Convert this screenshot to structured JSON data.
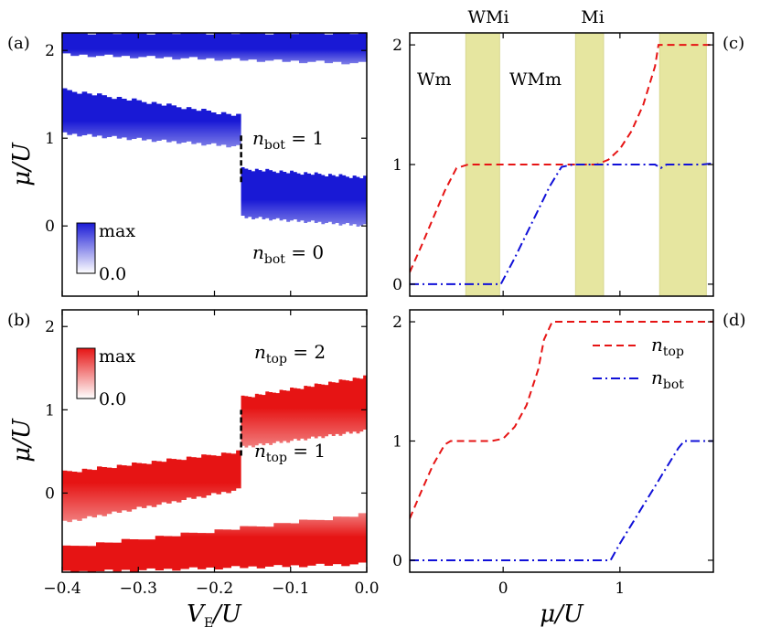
{
  "figure": {
    "panel_labels": [
      "(a)",
      "(b)",
      "(c)",
      "(d)"
    ],
    "xlabel_left_main": "V",
    "xlabel_left_sub": "E",
    "xlabel_left_tail": "/U",
    "xlabel_right": "μ/U",
    "ylabel": "μ/U"
  },
  "panel_a": {
    "colorbar_max": "max",
    "colorbar_min": "0.0",
    "label_nbot1_main": "n",
    "label_nbot1_sub": "bot",
    "label_nbot1_val": " = 1",
    "label_nbot0_main": "n",
    "label_nbot0_sub": "bot",
    "label_nbot0_val": " = 0"
  },
  "panel_b": {
    "colorbar_max": "max",
    "colorbar_min": "0.0",
    "label_ntop2_main": "n",
    "label_ntop2_sub": "top",
    "label_ntop2_val": " = 2",
    "label_ntop1_main": "n",
    "label_ntop1_sub": "top",
    "label_ntop1_val": " = 1"
  },
  "panel_c": {
    "phase_top_labels": [
      "WMi",
      "Mi"
    ],
    "phase_inner_labels": [
      "Wm",
      "WMm"
    ]
  },
  "panel_d": {
    "legend_ntop_main": "n",
    "legend_ntop_sub": "top",
    "legend_nbot_main": "n",
    "legend_nbot_sub": "bot"
  },
  "colors": {
    "blue": "#1a1ad6",
    "red": "#e61414",
    "band": "#e6e6a0",
    "ntop_line": "#e61414",
    "nbot_line": "#1010d8"
  },
  "chart_data": [
    {
      "type": "heatmap",
      "panel": "a",
      "title": "",
      "xlabel": "V_E/U",
      "ylabel": "μ/U",
      "xlim": [
        -0.4,
        0.0
      ],
      "ylim": [
        -0.8,
        2.2
      ],
      "xticks": [
        -0.4,
        -0.3,
        -0.2,
        -0.1,
        0.0
      ],
      "yticks": [
        0,
        1,
        2
      ],
      "quantity": "n_bot density",
      "colormap": "white to blue",
      "bands": [
        {
          "name": "upper",
          "x": [
            -0.4,
            0.0
          ],
          "y_bottom_start": 1.95,
          "y_bottom_end": 1.85,
          "y_top": 2.2
        },
        {
          "name": "lower-left",
          "x": [
            -0.4,
            -0.165
          ],
          "y_bottom_start": 1.05,
          "y_bottom_end": 0.9,
          "y_top_start": 1.55,
          "y_top_end": 1.25
        },
        {
          "name": "lower-right",
          "x": [
            -0.165,
            0.0
          ],
          "y_bottom_start": 0.1,
          "y_bottom_end": 0.0,
          "y_top_start": 0.65,
          "y_top_end": 0.55
        }
      ],
      "transition_line": {
        "x": -0.165,
        "y": [
          0.5,
          1.05
        ],
        "style": "dashed"
      }
    },
    {
      "type": "heatmap",
      "panel": "b",
      "title": "",
      "xlabel": "V_E/U",
      "ylabel": "μ/U",
      "xlim": [
        -0.4,
        0.0
      ],
      "ylim": [
        -0.95,
        2.2
      ],
      "xticks": [
        -0.4,
        -0.3,
        -0.2,
        -0.1,
        0.0
      ],
      "xtick_labels": [
        "−0.4",
        "−0.3",
        "−0.2",
        "−0.1",
        "0.0"
      ],
      "yticks": [
        0,
        1,
        2
      ],
      "quantity": "n_top density",
      "colormap": "white to red",
      "bands": [
        {
          "name": "upper-right",
          "x": [
            -0.165,
            0.0
          ],
          "y_bottom_start": 0.55,
          "y_bottom_end": 0.75,
          "y_top_start": 1.15,
          "y_top_end": 1.4
        },
        {
          "name": "middle-left",
          "x": [
            -0.4,
            -0.165
          ],
          "y_bottom_start": -0.35,
          "y_bottom_end": 0.05,
          "y_top_start": 0.25,
          "y_top_end": 0.5
        },
        {
          "name": "bottom",
          "x": [
            -0.4,
            0.0
          ],
          "y_bottom_start": -0.95,
          "y_bottom_end": -0.85,
          "y_top_start": -0.65,
          "y_top_end": -0.25
        }
      ],
      "transition_line": {
        "x": -0.165,
        "y": [
          0.45,
          1.0
        ],
        "style": "dashed"
      }
    },
    {
      "type": "line",
      "panel": "c",
      "title": "",
      "xlabel": "μ/U",
      "ylabel": "",
      "xlim": [
        -0.8,
        1.8
      ],
      "ylim": [
        -0.1,
        2.1
      ],
      "xticks": [
        0,
        1
      ],
      "yticks": [
        0,
        1,
        2
      ],
      "shaded_regions": [
        [
          -0.32,
          -0.03
        ],
        [
          0.62,
          0.86
        ],
        [
          1.34,
          1.74
        ]
      ],
      "series": [
        {
          "name": "n_top",
          "style": "dashed",
          "x": [
            -0.8,
            -0.7,
            -0.6,
            -0.5,
            -0.4,
            -0.3,
            -0.2,
            -0.1,
            0.0,
            0.1,
            0.2,
            0.3,
            0.4,
            0.5,
            0.6,
            0.7,
            0.8,
            0.9,
            1.0,
            1.1,
            1.2,
            1.3,
            1.33,
            1.4,
            1.5,
            1.6,
            1.7,
            1.8
          ],
          "y": [
            0.1,
            0.32,
            0.55,
            0.78,
            0.97,
            1.0,
            1.0,
            1.0,
            1.0,
            1.0,
            1.0,
            1.0,
            1.0,
            1.0,
            1.0,
            1.0,
            1.0,
            1.04,
            1.13,
            1.28,
            1.5,
            1.82,
            2.0,
            2.0,
            2.0,
            2.0,
            2.0,
            2.0
          ]
        },
        {
          "name": "n_bot",
          "style": "dashdot",
          "x": [
            -0.8,
            -0.5,
            -0.2,
            -0.02,
            0.1,
            0.2,
            0.3,
            0.4,
            0.5,
            0.6,
            0.7,
            0.8,
            0.9,
            1.0,
            1.1,
            1.2,
            1.3,
            1.35,
            1.4,
            1.5,
            1.6,
            1.7,
            1.8
          ],
          "y": [
            0.0,
            0.0,
            0.0,
            0.0,
            0.22,
            0.42,
            0.62,
            0.82,
            0.98,
            1.0,
            1.0,
            1.0,
            1.0,
            1.0,
            1.0,
            1.0,
            1.0,
            0.97,
            1.0,
            1.0,
            1.0,
            1.0,
            1.01
          ]
        }
      ]
    },
    {
      "type": "line",
      "panel": "d",
      "title": "",
      "xlabel": "μ/U",
      "ylabel": "",
      "xlim": [
        -0.8,
        1.8
      ],
      "ylim": [
        -0.1,
        2.1
      ],
      "xticks": [
        0,
        1
      ],
      "xtick_labels": [
        "0",
        "1"
      ],
      "yticks": [
        0,
        1,
        2
      ],
      "legend": "top-right",
      "series": [
        {
          "name": "n_top",
          "style": "dashed",
          "x": [
            -0.8,
            -0.7,
            -0.6,
            -0.5,
            -0.45,
            -0.3,
            -0.1,
            0.0,
            0.1,
            0.2,
            0.3,
            0.35,
            0.42,
            0.6,
            0.8,
            1.0,
            1.2,
            1.4,
            1.6,
            1.8
          ],
          "y": [
            0.35,
            0.58,
            0.8,
            0.97,
            1.0,
            1.0,
            1.0,
            1.02,
            1.12,
            1.3,
            1.6,
            1.85,
            2.0,
            2.0,
            2.0,
            2.0,
            2.0,
            2.0,
            2.0,
            2.0
          ]
        },
        {
          "name": "n_bot",
          "style": "dashdot",
          "x": [
            -0.8,
            -0.4,
            0.0,
            0.4,
            0.8,
            0.92,
            1.0,
            1.1,
            1.2,
            1.3,
            1.4,
            1.5,
            1.55,
            1.6,
            1.7,
            1.8
          ],
          "y": [
            0.0,
            0.0,
            0.0,
            0.0,
            0.0,
            0.0,
            0.14,
            0.3,
            0.46,
            0.62,
            0.78,
            0.94,
            1.0,
            1.0,
            1.0,
            1.0
          ]
        }
      ]
    }
  ]
}
